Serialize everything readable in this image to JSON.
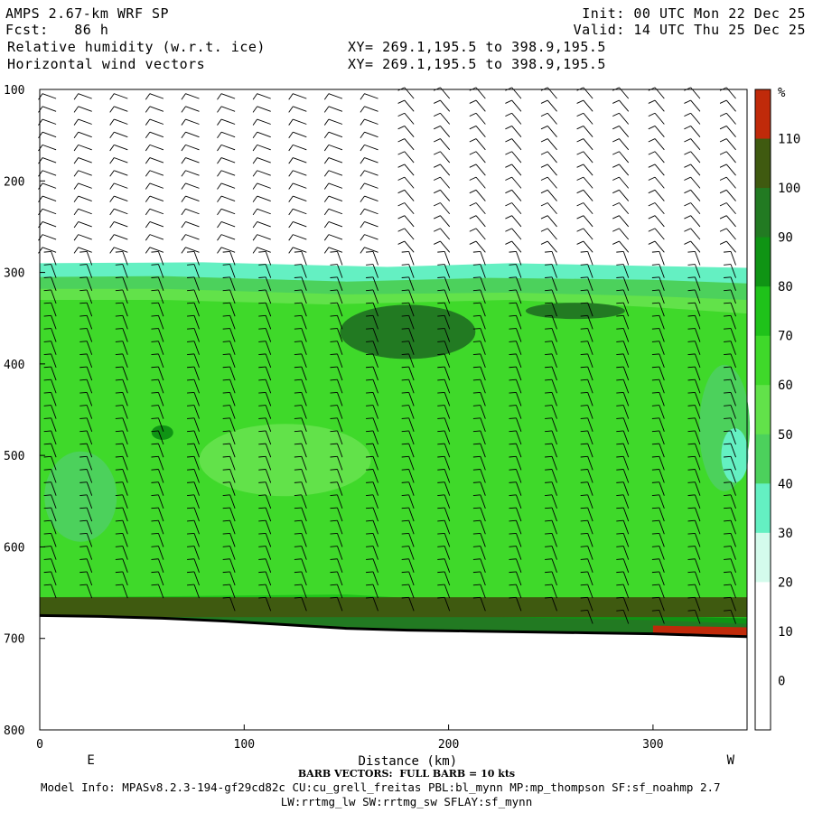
{
  "header": {
    "model": "AMPS 2.67-km WRF SP",
    "init": "Init: 00 UTC Mon 22 Dec 25",
    "fcst": "Fcst:   86 h",
    "valid": "Valid: 14 UTC Thu 25 Dec 25",
    "field1": "Relative humidity (w.r.t. ice)",
    "field2": "Horizontal wind vectors",
    "xy1": "XY= 269.1,195.5 to 398.9,195.5",
    "xy2": "XY= 269.1,195.5 to 398.9,195.5"
  },
  "chart_data": {
    "type": "heatmap",
    "title": "Relative humidity (w.r.t. ice)",
    "xlabel": "Distance (km)",
    "ylabel": "",
    "x_range": [
      0,
      346
    ],
    "y_range": [
      100,
      800
    ],
    "y_reversed": true,
    "x_ticks": [
      0,
      100,
      200,
      300
    ],
    "y_ticks": [
      100,
      200,
      300,
      400,
      500,
      600,
      700,
      800
    ],
    "x_end_labels": {
      "left": "E",
      "right": "W"
    },
    "colorbar": {
      "unit": "%",
      "levels": [
        0,
        10,
        20,
        30,
        40,
        50,
        60,
        70,
        80,
        90,
        100,
        110
      ],
      "colors": [
        "#ffffff",
        "#ffffff",
        "#ffffff",
        "#d4fbec",
        "#64f0c2",
        "#4cd15c",
        "#62e24a",
        "#3fd92a",
        "#1fc21a",
        "#0f9414",
        "#227a22",
        "#3f5a10",
        "#c02a0a"
      ]
    },
    "terrain_pressure": [
      [
        0,
        675
      ],
      [
        30,
        676
      ],
      [
        60,
        678
      ],
      [
        90,
        681
      ],
      [
        120,
        685
      ],
      [
        150,
        689
      ],
      [
        180,
        691
      ],
      [
        210,
        692
      ],
      [
        240,
        693
      ],
      [
        270,
        694
      ],
      [
        300,
        695
      ],
      [
        330,
        697
      ],
      [
        346,
        698
      ]
    ],
    "rh_layers": [
      {
        "level": 30,
        "top": [
          [
            0,
            290
          ],
          [
            80,
            289
          ],
          [
            170,
            294
          ],
          [
            230,
            290
          ],
          [
            300,
            293
          ],
          [
            346,
            295
          ]
        ]
      },
      {
        "level": 40,
        "top": [
          [
            0,
            305
          ],
          [
            60,
            304
          ],
          [
            150,
            310
          ],
          [
            220,
            306
          ],
          [
            300,
            308
          ],
          [
            346,
            312
          ]
        ]
      },
      {
        "level": 50,
        "top": [
          [
            0,
            318
          ],
          [
            60,
            318
          ],
          [
            150,
            324
          ],
          [
            230,
            322
          ],
          [
            300,
            326
          ],
          [
            346,
            330
          ]
        ]
      },
      {
        "level": 60,
        "top": [
          [
            0,
            330
          ],
          [
            60,
            330
          ],
          [
            140,
            335
          ],
          [
            230,
            330
          ],
          [
            300,
            338
          ],
          [
            346,
            345
          ]
        ]
      },
      {
        "level": 70,
        "top": [
          [
            0,
            655
          ],
          [
            60,
            654
          ],
          [
            150,
            652
          ],
          [
            230,
            662
          ],
          [
            300,
            670
          ],
          [
            346,
            672
          ]
        ]
      },
      {
        "level": 80,
        "top": [
          [
            0,
            660
          ],
          [
            60,
            662
          ],
          [
            150,
            668
          ],
          [
            230,
            672
          ],
          [
            300,
            676
          ],
          [
            346,
            678
          ]
        ]
      },
      {
        "level": 90,
        "top": [
          [
            0,
            663
          ],
          [
            60,
            664
          ],
          [
            150,
            672
          ],
          [
            230,
            677
          ],
          [
            300,
            680
          ],
          [
            346,
            684
          ]
        ]
      }
    ],
    "notes": {
      "dry_pockets_40_50": "E side 480-580 hPa and W side 400-540 hPa",
      "moist_core_90": "near x=150-210 km, 340-395 hPa",
      "saturated_red": "near x=300-346 km, 685-700 hPa"
    },
    "wind_barbs": "Full barb = 10 kts; westerly-to-southwesterly shear in upper levels, calm rings near x=175 km above 270 hPa"
  },
  "footer": {
    "barb_note": "BARB VECTORS:  FULL BARB = 10 kts",
    "model_info": "Model Info: MPASv8.2.3-194-gf29cd82c CU:cu_grell_freitas PBL:bl_mynn MP:mp_thompson SF:sf_noahmp 2.7",
    "model_info2": "LW:rrtmg_lw SW:rrtmg_sw SFLAY:sf_mynn"
  }
}
